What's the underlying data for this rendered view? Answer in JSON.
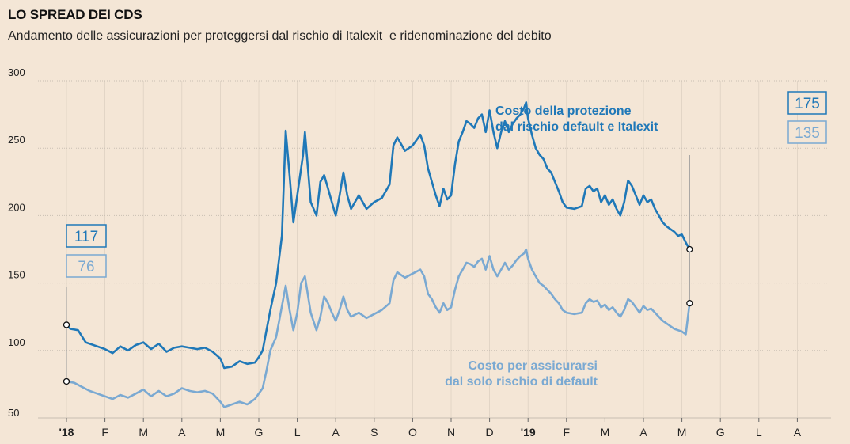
{
  "header": {
    "title": "LO SPREAD DEI CDS",
    "subtitle": "Andamento delle assicurazioni per proteggersi dal rischio di Italexit  e ridenominazione del debito"
  },
  "colors": {
    "background": "#f4e6d6",
    "series_dark": "#1f78b8",
    "series_light": "#7aa9d2",
    "grid": "#c9bfb3"
  },
  "chart_data": {
    "type": "line",
    "title": "LO SPREAD DEI CDS",
    "subtitle": "Andamento delle assicurazioni per proteggersi dal rischio di Italexit  e ridenominazione del debito",
    "ylim": [
      50,
      300
    ],
    "y_ticks": [
      "300",
      "250",
      "200",
      "150",
      "100",
      "50"
    ],
    "y_tick_values": [
      300,
      250,
      200,
      150,
      100,
      50
    ],
    "x_ticks": [
      "'18",
      "F",
      "M",
      "A",
      "M",
      "G",
      "L",
      "A",
      "S",
      "O",
      "N",
      "D",
      "'19",
      "F",
      "M",
      "A",
      "M",
      "G",
      "L",
      "A"
    ],
    "x_tick_bold": [
      true,
      false,
      false,
      false,
      false,
      false,
      false,
      false,
      false,
      false,
      false,
      false,
      true,
      false,
      false,
      false,
      false,
      false,
      false,
      false
    ],
    "x_range": [
      0,
      16.2
    ],
    "series": [
      {
        "name": "Costo della protezione dal rischio default e Italexit",
        "label_lines": [
          "Costo della protezione",
          "dal rischio default e Italexit"
        ],
        "color": "#1f78b8",
        "start_value": "117",
        "end_value": "175",
        "points": [
          [
            0,
            119
          ],
          [
            0.1,
            116
          ],
          [
            0.3,
            115
          ],
          [
            0.5,
            106
          ],
          [
            0.8,
            103
          ],
          [
            1.0,
            101
          ],
          [
            1.2,
            98
          ],
          [
            1.4,
            103
          ],
          [
            1.6,
            100
          ],
          [
            1.8,
            104
          ],
          [
            2.0,
            106
          ],
          [
            2.2,
            101
          ],
          [
            2.4,
            105
          ],
          [
            2.6,
            99
          ],
          [
            2.8,
            102
          ],
          [
            3.0,
            103
          ],
          [
            3.2,
            102
          ],
          [
            3.4,
            101
          ],
          [
            3.6,
            102
          ],
          [
            3.8,
            99
          ],
          [
            4.0,
            94
          ],
          [
            4.1,
            87
          ],
          [
            4.3,
            88
          ],
          [
            4.5,
            92
          ],
          [
            4.7,
            90
          ],
          [
            4.9,
            91
          ],
          [
            5.0,
            95
          ],
          [
            5.1,
            100
          ],
          [
            5.2,
            115
          ],
          [
            5.3,
            130
          ],
          [
            5.45,
            150
          ],
          [
            5.6,
            185
          ],
          [
            5.7,
            263
          ],
          [
            5.8,
            230
          ],
          [
            5.9,
            195
          ],
          [
            6.0,
            215
          ],
          [
            6.15,
            245
          ],
          [
            6.2,
            262
          ],
          [
            6.35,
            210
          ],
          [
            6.5,
            200
          ],
          [
            6.6,
            225
          ],
          [
            6.7,
            230
          ],
          [
            6.8,
            220
          ],
          [
            6.9,
            210
          ],
          [
            7.0,
            200
          ],
          [
            7.1,
            215
          ],
          [
            7.2,
            232
          ],
          [
            7.3,
            215
          ],
          [
            7.4,
            205
          ],
          [
            7.6,
            215
          ],
          [
            7.8,
            205
          ],
          [
            8.0,
            210
          ],
          [
            8.2,
            213
          ],
          [
            8.4,
            223
          ],
          [
            8.5,
            252
          ],
          [
            8.6,
            258
          ],
          [
            8.8,
            248
          ],
          [
            9.0,
            252
          ],
          [
            9.2,
            260
          ],
          [
            9.3,
            252
          ],
          [
            9.4,
            235
          ],
          [
            9.5,
            225
          ],
          [
            9.6,
            215
          ],
          [
            9.7,
            207
          ],
          [
            9.8,
            220
          ],
          [
            9.9,
            212
          ],
          [
            10.0,
            215
          ],
          [
            10.1,
            238
          ],
          [
            10.2,
            255
          ],
          [
            10.3,
            262
          ],
          [
            10.4,
            270
          ],
          [
            10.5,
            268
          ],
          [
            10.6,
            265
          ],
          [
            10.7,
            272
          ],
          [
            10.8,
            275
          ],
          [
            10.9,
            262
          ],
          [
            11.0,
            278
          ],
          [
            11.1,
            262
          ],
          [
            11.2,
            250
          ],
          [
            11.3,
            262
          ],
          [
            11.4,
            270
          ],
          [
            11.5,
            262
          ],
          [
            11.6,
            268
          ],
          [
            11.7,
            272
          ],
          [
            11.8,
            275
          ],
          [
            11.9,
            280
          ],
          [
            11.95,
            284
          ],
          [
            12.0,
            272
          ],
          [
            12.1,
            260
          ],
          [
            12.2,
            250
          ],
          [
            12.3,
            245
          ],
          [
            12.4,
            242
          ],
          [
            12.5,
            235
          ],
          [
            12.6,
            232
          ],
          [
            12.7,
            225
          ],
          [
            12.8,
            218
          ],
          [
            12.9,
            210
          ],
          [
            13.0,
            206
          ],
          [
            13.2,
            205
          ],
          [
            13.4,
            207
          ],
          [
            13.5,
            220
          ],
          [
            13.6,
            222
          ],
          [
            13.7,
            218
          ],
          [
            13.8,
            220
          ],
          [
            13.9,
            210
          ],
          [
            14.0,
            215
          ],
          [
            14.1,
            208
          ],
          [
            14.2,
            212
          ],
          [
            14.3,
            205
          ],
          [
            14.4,
            200
          ],
          [
            14.5,
            210
          ],
          [
            14.6,
            226
          ],
          [
            14.7,
            222
          ],
          [
            14.8,
            215
          ],
          [
            14.9,
            208
          ],
          [
            15.0,
            215
          ],
          [
            15.1,
            210
          ],
          [
            15.2,
            212
          ],
          [
            15.3,
            205
          ],
          [
            15.4,
            200
          ],
          [
            15.5,
            195
          ],
          [
            15.6,
            192
          ],
          [
            15.7,
            190
          ],
          [
            15.8,
            188
          ],
          [
            15.9,
            185
          ],
          [
            16.0,
            186
          ],
          [
            16.1,
            180
          ],
          [
            16.2,
            175
          ]
        ]
      },
      {
        "name": "Costo per assicurarsi dal solo rischio di default",
        "label_lines": [
          "Costo per assicurarsi",
          "dal solo rischio di default"
        ],
        "color": "#7aa9d2",
        "start_value": "76",
        "end_value": "135",
        "points": [
          [
            0,
            77
          ],
          [
            0.2,
            76
          ],
          [
            0.4,
            73
          ],
          [
            0.6,
            70
          ],
          [
            0.8,
            68
          ],
          [
            1.0,
            66
          ],
          [
            1.2,
            64
          ],
          [
            1.4,
            67
          ],
          [
            1.6,
            65
          ],
          [
            1.8,
            68
          ],
          [
            2.0,
            71
          ],
          [
            2.2,
            66
          ],
          [
            2.4,
            70
          ],
          [
            2.6,
            66
          ],
          [
            2.8,
            68
          ],
          [
            3.0,
            72
          ],
          [
            3.2,
            70
          ],
          [
            3.4,
            69
          ],
          [
            3.6,
            70
          ],
          [
            3.8,
            68
          ],
          [
            4.0,
            62
          ],
          [
            4.1,
            58
          ],
          [
            4.3,
            60
          ],
          [
            4.5,
            62
          ],
          [
            4.7,
            60
          ],
          [
            4.9,
            64
          ],
          [
            5.0,
            68
          ],
          [
            5.1,
            72
          ],
          [
            5.2,
            85
          ],
          [
            5.3,
            100
          ],
          [
            5.45,
            110
          ],
          [
            5.55,
            125
          ],
          [
            5.7,
            148
          ],
          [
            5.8,
            130
          ],
          [
            5.9,
            115
          ],
          [
            6.0,
            128
          ],
          [
            6.1,
            150
          ],
          [
            6.2,
            155
          ],
          [
            6.35,
            128
          ],
          [
            6.5,
            115
          ],
          [
            6.6,
            125
          ],
          [
            6.7,
            140
          ],
          [
            6.8,
            135
          ],
          [
            6.9,
            128
          ],
          [
            7.0,
            122
          ],
          [
            7.1,
            130
          ],
          [
            7.2,
            140
          ],
          [
            7.3,
            130
          ],
          [
            7.4,
            125
          ],
          [
            7.6,
            128
          ],
          [
            7.8,
            124
          ],
          [
            8.0,
            127
          ],
          [
            8.2,
            130
          ],
          [
            8.4,
            135
          ],
          [
            8.5,
            152
          ],
          [
            8.6,
            158
          ],
          [
            8.8,
            154
          ],
          [
            9.0,
            157
          ],
          [
            9.2,
            160
          ],
          [
            9.3,
            155
          ],
          [
            9.4,
            142
          ],
          [
            9.5,
            138
          ],
          [
            9.6,
            132
          ],
          [
            9.7,
            128
          ],
          [
            9.8,
            135
          ],
          [
            9.9,
            130
          ],
          [
            10.0,
            132
          ],
          [
            10.1,
            145
          ],
          [
            10.2,
            155
          ],
          [
            10.3,
            160
          ],
          [
            10.4,
            165
          ],
          [
            10.5,
            164
          ],
          [
            10.6,
            162
          ],
          [
            10.7,
            166
          ],
          [
            10.8,
            168
          ],
          [
            10.9,
            160
          ],
          [
            11.0,
            170
          ],
          [
            11.1,
            160
          ],
          [
            11.2,
            155
          ],
          [
            11.3,
            160
          ],
          [
            11.4,
            165
          ],
          [
            11.5,
            160
          ],
          [
            11.6,
            163
          ],
          [
            11.7,
            167
          ],
          [
            11.8,
            170
          ],
          [
            11.9,
            172
          ],
          [
            11.95,
            175
          ],
          [
            12.0,
            168
          ],
          [
            12.1,
            160
          ],
          [
            12.2,
            155
          ],
          [
            12.3,
            150
          ],
          [
            12.4,
            148
          ],
          [
            12.5,
            145
          ],
          [
            12.6,
            142
          ],
          [
            12.7,
            138
          ],
          [
            12.8,
            135
          ],
          [
            12.9,
            130
          ],
          [
            13.0,
            128
          ],
          [
            13.2,
            127
          ],
          [
            13.4,
            128
          ],
          [
            13.5,
            135
          ],
          [
            13.6,
            138
          ],
          [
            13.7,
            136
          ],
          [
            13.8,
            137
          ],
          [
            13.9,
            132
          ],
          [
            14.0,
            134
          ],
          [
            14.1,
            130
          ],
          [
            14.2,
            132
          ],
          [
            14.3,
            128
          ],
          [
            14.4,
            125
          ],
          [
            14.5,
            130
          ],
          [
            14.6,
            138
          ],
          [
            14.7,
            136
          ],
          [
            14.8,
            132
          ],
          [
            14.9,
            128
          ],
          [
            15.0,
            133
          ],
          [
            15.1,
            130
          ],
          [
            15.2,
            131
          ],
          [
            15.3,
            128
          ],
          [
            15.4,
            125
          ],
          [
            15.5,
            122
          ],
          [
            15.6,
            120
          ],
          [
            15.7,
            118
          ],
          [
            15.8,
            116
          ],
          [
            15.9,
            115
          ],
          [
            16.0,
            114
          ],
          [
            16.1,
            112
          ],
          [
            16.2,
            135
          ]
        ]
      }
    ]
  }
}
